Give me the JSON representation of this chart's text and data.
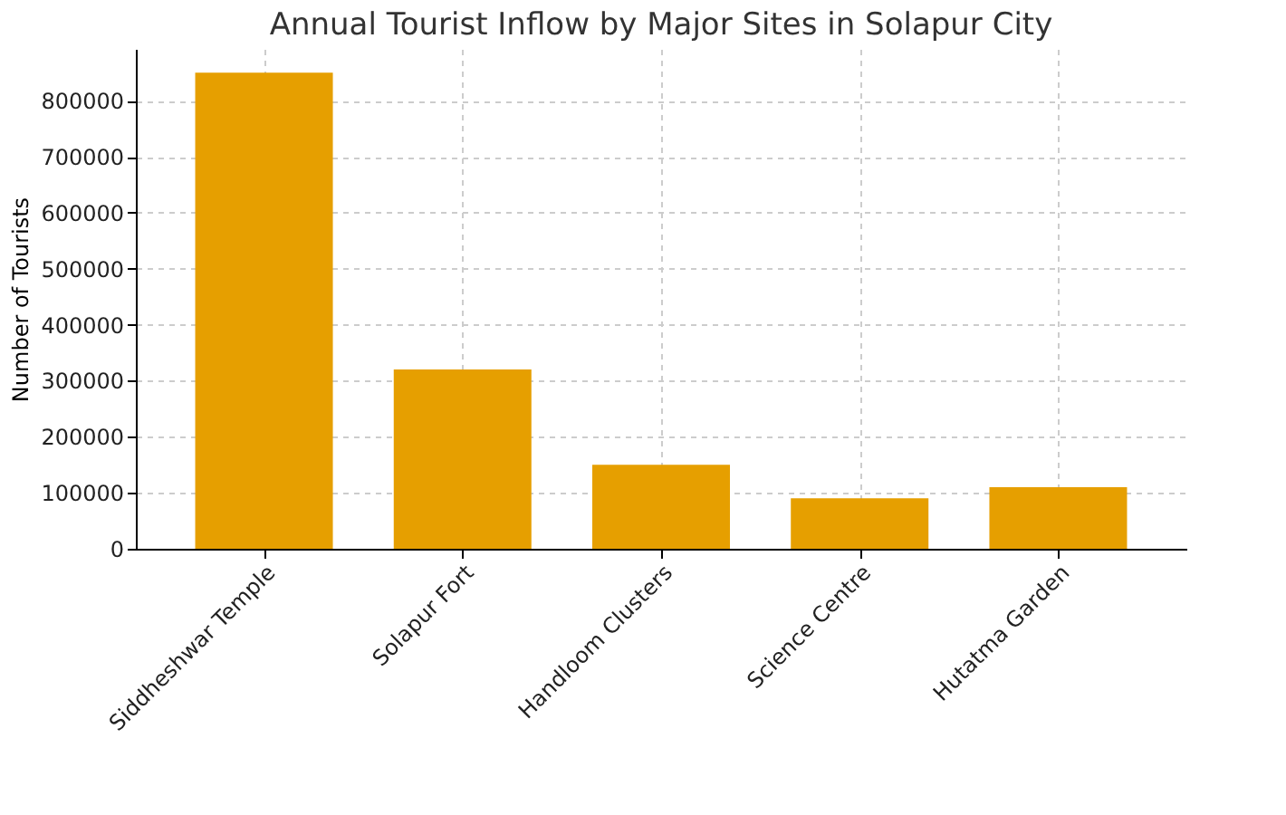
{
  "chart_data": {
    "type": "bar",
    "title": "Annual Tourist Inflow by Major Sites in Solapur City",
    "ylabel": "Number of Tourists",
    "categories": [
      "Siddheshwar Temple",
      "Solapur Fort",
      "Handloom Clusters",
      "Science Centre",
      "Hutatma Garden"
    ],
    "values": [
      850000,
      320000,
      150000,
      90000,
      110000
    ],
    "color": "#e69f00",
    "ylim": [
      0,
      892500
    ],
    "yticks": [
      0,
      100000,
      200000,
      300000,
      400000,
      500000,
      600000,
      700000,
      800000
    ],
    "grid": true
  }
}
